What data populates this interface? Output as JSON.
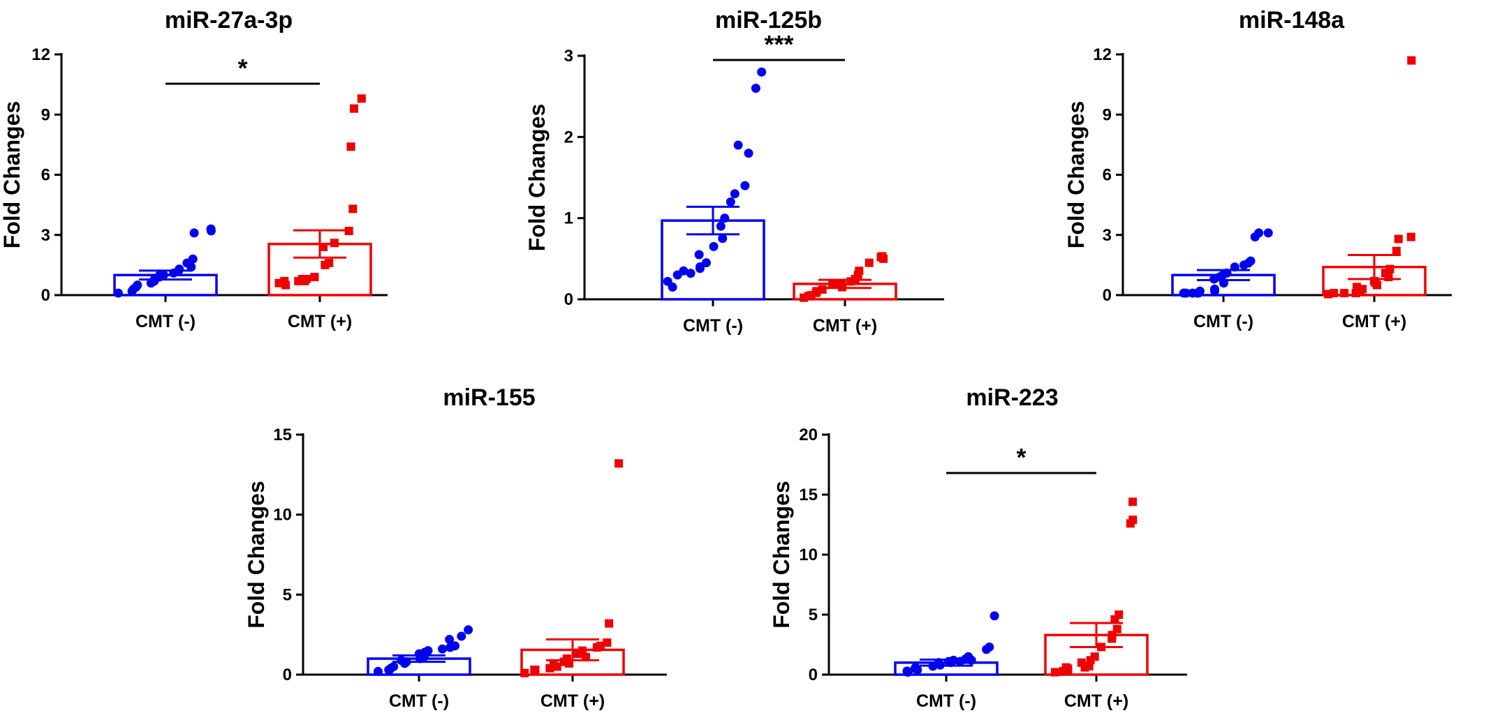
{
  "chart_data": [
    {
      "type": "bar",
      "title": "miR-27a-3p",
      "ylabel": "Fold  Changes",
      "ylim": [
        0,
        12
      ],
      "yticks": [
        0,
        3,
        6,
        9,
        12
      ],
      "categories": [
        "CMT (-)",
        "CMT (+)"
      ],
      "colors": [
        "#0000ee",
        "#ee0000"
      ],
      "markers": [
        "circle",
        "square"
      ],
      "means": [
        1.0,
        2.55
      ],
      "sem": [
        0.22,
        0.68
      ],
      "points": [
        [
          0.1,
          0.2,
          0.3,
          0.4,
          0.5,
          0.6,
          0.7,
          0.8,
          0.9,
          1.0,
          1.0,
          1.1,
          1.2,
          1.3,
          1.4,
          1.6,
          1.8,
          3.1,
          3.2,
          3.3
        ],
        [
          0.5,
          0.6,
          0.7,
          0.7,
          0.7,
          0.8,
          0.8,
          0.9,
          1.5,
          1.6,
          2.4,
          2.6,
          3.2,
          4.3,
          7.4,
          9.3,
          9.8
        ]
      ],
      "significance": "*"
    },
    {
      "type": "bar",
      "title": "miR-125b",
      "ylabel": "Fold  Changes",
      "ylim": [
        0,
        3
      ],
      "yticks": [
        0,
        1,
        2,
        3
      ],
      "categories": [
        "CMT (-)",
        "CMT (+)"
      ],
      "colors": [
        "#0000ee",
        "#ee0000"
      ],
      "markers": [
        "circle",
        "square"
      ],
      "means": [
        0.97,
        0.19
      ],
      "sem": [
        0.17,
        0.05
      ],
      "points": [
        [
          0.15,
          0.22,
          0.3,
          0.32,
          0.35,
          0.38,
          0.4,
          0.45,
          0.55,
          0.65,
          0.75,
          0.9,
          1.0,
          1.2,
          1.3,
          1.4,
          1.8,
          1.9,
          2.6,
          2.8
        ],
        [
          0.02,
          0.04,
          0.05,
          0.08,
          0.1,
          0.12,
          0.15,
          0.18,
          0.2,
          0.22,
          0.25,
          0.3,
          0.35,
          0.45,
          0.5,
          0.52,
          0.53
        ]
      ],
      "significance": "***"
    },
    {
      "type": "bar",
      "title": "miR-148a",
      "ylabel": "Fold  Changes",
      "ylim": [
        0,
        12
      ],
      "yticks": [
        0,
        3,
        6,
        9,
        12
      ],
      "categories": [
        "CMT (-)",
        "CMT (+)"
      ],
      "colors": [
        "#0000ee",
        "#ee0000"
      ],
      "markers": [
        "circle",
        "square"
      ],
      "means": [
        1.0,
        1.4
      ],
      "sem": [
        0.25,
        0.6
      ],
      "points": [
        [
          0.1,
          0.1,
          0.1,
          0.1,
          0.1,
          0.2,
          0.2,
          0.3,
          0.6,
          0.8,
          0.9,
          1.0,
          1.1,
          1.4,
          1.5,
          1.6,
          1.7,
          2.9,
          3.1,
          3.1
        ],
        [
          0.05,
          0.1,
          0.1,
          0.1,
          0.2,
          0.3,
          0.4,
          0.5,
          0.6,
          0.7,
          0.9,
          1.1,
          1.3,
          2.2,
          2.8,
          2.9,
          11.7
        ]
      ],
      "significance": ""
    },
    {
      "type": "bar",
      "title": "miR-155",
      "ylabel": "Fold  Changes",
      "ylim": [
        0,
        15
      ],
      "yticks": [
        0,
        5,
        10,
        15
      ],
      "categories": [
        "CMT (-)",
        "CMT (+)"
      ],
      "colors": [
        "#0000ee",
        "#ee0000"
      ],
      "markers": [
        "circle",
        "square"
      ],
      "means": [
        1.0,
        1.55
      ],
      "sem": [
        0.2,
        0.65
      ],
      "points": [
        [
          0.2,
          0.3,
          0.3,
          0.4,
          0.5,
          0.7,
          0.8,
          0.9,
          1.0,
          1.1,
          1.2,
          1.3,
          1.4,
          1.5,
          1.6,
          1.7,
          1.8,
          2.2,
          2.4,
          2.8
        ],
        [
          0.1,
          0.3,
          0.3,
          0.4,
          0.5,
          0.6,
          0.7,
          0.8,
          1.0,
          1.1,
          1.3,
          1.5,
          1.7,
          1.8,
          2.0,
          3.2,
          13.2
        ]
      ],
      "significance": ""
    },
    {
      "type": "bar",
      "title": "miR-223",
      "ylabel": "Fold  Changes",
      "ylim": [
        0,
        20
      ],
      "yticks": [
        0,
        5,
        10,
        15,
        20
      ],
      "categories": [
        "CMT (-)",
        "CMT (+)"
      ],
      "colors": [
        "#0000ee",
        "#ee0000"
      ],
      "markers": [
        "circle",
        "square"
      ],
      "means": [
        1.0,
        3.3
      ],
      "sem": [
        0.25,
        1.0
      ],
      "points": [
        [
          0.2,
          0.3,
          0.4,
          0.5,
          0.6,
          0.7,
          0.8,
          0.9,
          1.0,
          1.0,
          1.1,
          1.1,
          1.2,
          1.2,
          1.3,
          1.5,
          2.1,
          2.3,
          4.9
        ],
        [
          0.2,
          0.3,
          0.4,
          0.5,
          0.6,
          0.6,
          0.7,
          1.0,
          1.2,
          1.5,
          2.3,
          3.0,
          3.3,
          3.8,
          4.6,
          5.0,
          12.6,
          12.9,
          14.4
        ]
      ],
      "significance": "*"
    }
  ]
}
